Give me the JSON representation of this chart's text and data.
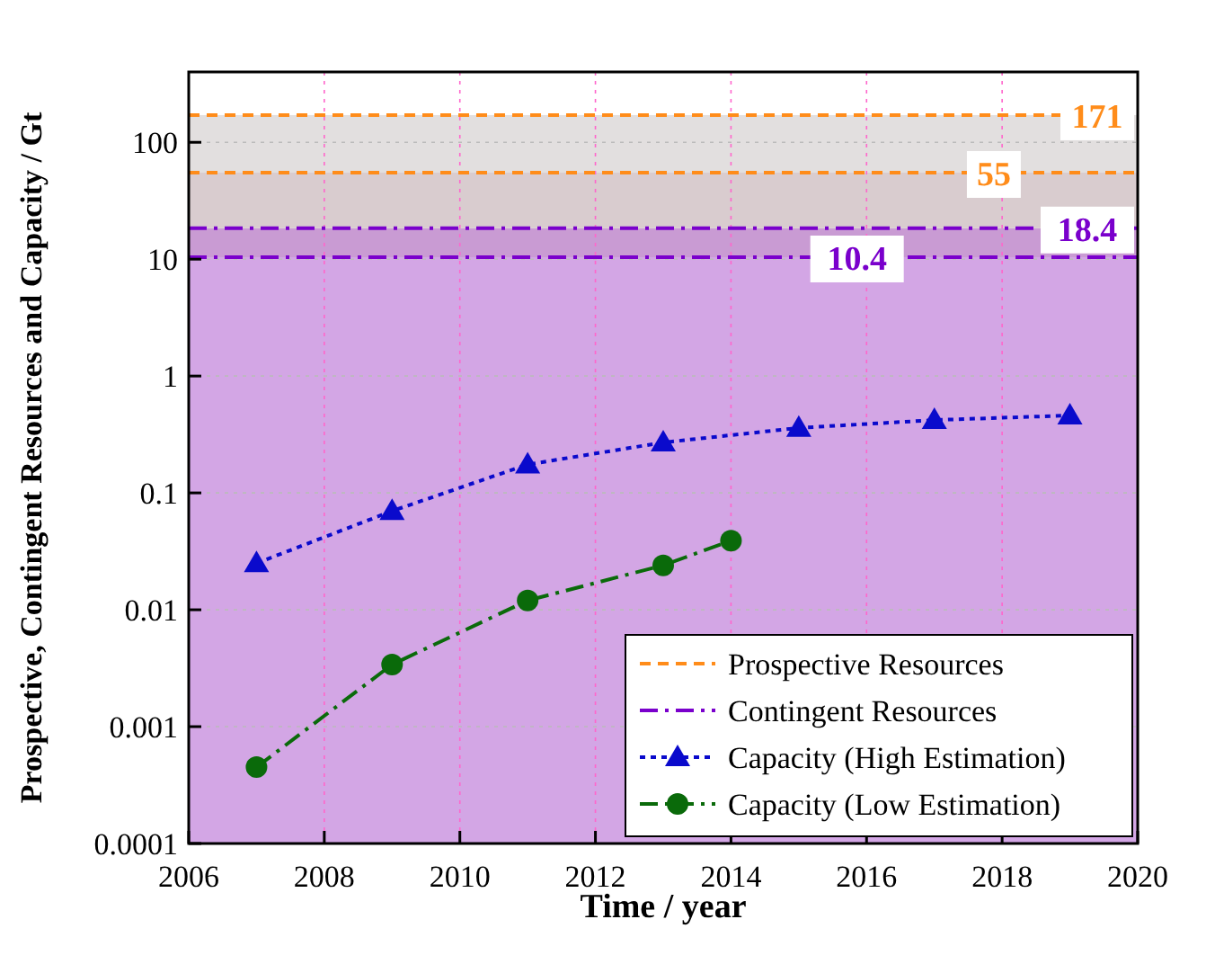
{
  "chart_data": {
    "type": "line",
    "xlabel": "Time / year",
    "ylabel": "Prospective, Contingent Resources and Capacity / Gt",
    "xlim": [
      2006,
      2020
    ],
    "xticks": [
      2006,
      2008,
      2010,
      2012,
      2014,
      2016,
      2018,
      2020
    ],
    "ylim": [
      0.0001,
      400
    ],
    "yticks": [
      {
        "value": 0.0001,
        "label": "0.0001"
      },
      {
        "value": 0.001,
        "label": "0.001"
      },
      {
        "value": 0.01,
        "label": "0.01"
      },
      {
        "value": 0.1,
        "label": "0.1"
      },
      {
        "value": 1,
        "label": "1"
      },
      {
        "value": 10,
        "label": "10"
      },
      {
        "value": 100,
        "label": "100"
      }
    ],
    "log": "y",
    "grid": true,
    "legend": "bottom right",
    "bands": [
      {
        "axis": "y",
        "from": 0.0001,
        "to": 10.4,
        "color": "#d3a6e5"
      },
      {
        "axis": "y",
        "from": 10.4,
        "to": 18.4,
        "color": "#c99bd3"
      },
      {
        "axis": "y",
        "from": 18.4,
        "to": 55,
        "color": "#d9cccf"
      },
      {
        "axis": "y",
        "from": 55,
        "to": 171,
        "color": "#e2dfdf"
      }
    ],
    "ref_lines": [
      {
        "axis": "y",
        "value": 55,
        "label": "55",
        "color": "#ff8c1a",
        "line_style": "dashed"
      },
      {
        "axis": "y",
        "value": 10.4,
        "label": "10.4",
        "color": "#7a00cc",
        "line_style": "dashdot"
      }
    ],
    "series": [
      {
        "name": "Prospective Resources",
        "color": "#ff8c1a",
        "x": [
          2006,
          2020
        ],
        "values": [
          171,
          171
        ],
        "value_labels": [
          null,
          "171"
        ],
        "line_style": "dashed",
        "marker": "none"
      },
      {
        "name": "Contingent Resources",
        "color": "#7a00cc",
        "x": [
          2006,
          2020
        ],
        "values": [
          18.4,
          18.4
        ],
        "value_labels": [
          null,
          "18.4"
        ],
        "line_style": "dashdot",
        "marker": "none"
      },
      {
        "name": "Capacity (High Estimation)",
        "color": "#0a0acc",
        "x": [
          2007,
          2009,
          2011,
          2013,
          2015,
          2017,
          2019
        ],
        "values": [
          0.025,
          0.07,
          0.175,
          0.27,
          0.36,
          0.42,
          0.46
        ],
        "line_style": "dotted",
        "marker": "triangle"
      },
      {
        "name": "Capacity (Low Estimation)",
        "color": "#0a6a0a",
        "x": [
          2007,
          2009,
          2011,
          2013,
          2014
        ],
        "values": [
          0.00045,
          0.0034,
          0.012,
          0.024,
          0.039
        ],
        "line_style": "dashdot",
        "marker": "circle"
      }
    ]
  }
}
